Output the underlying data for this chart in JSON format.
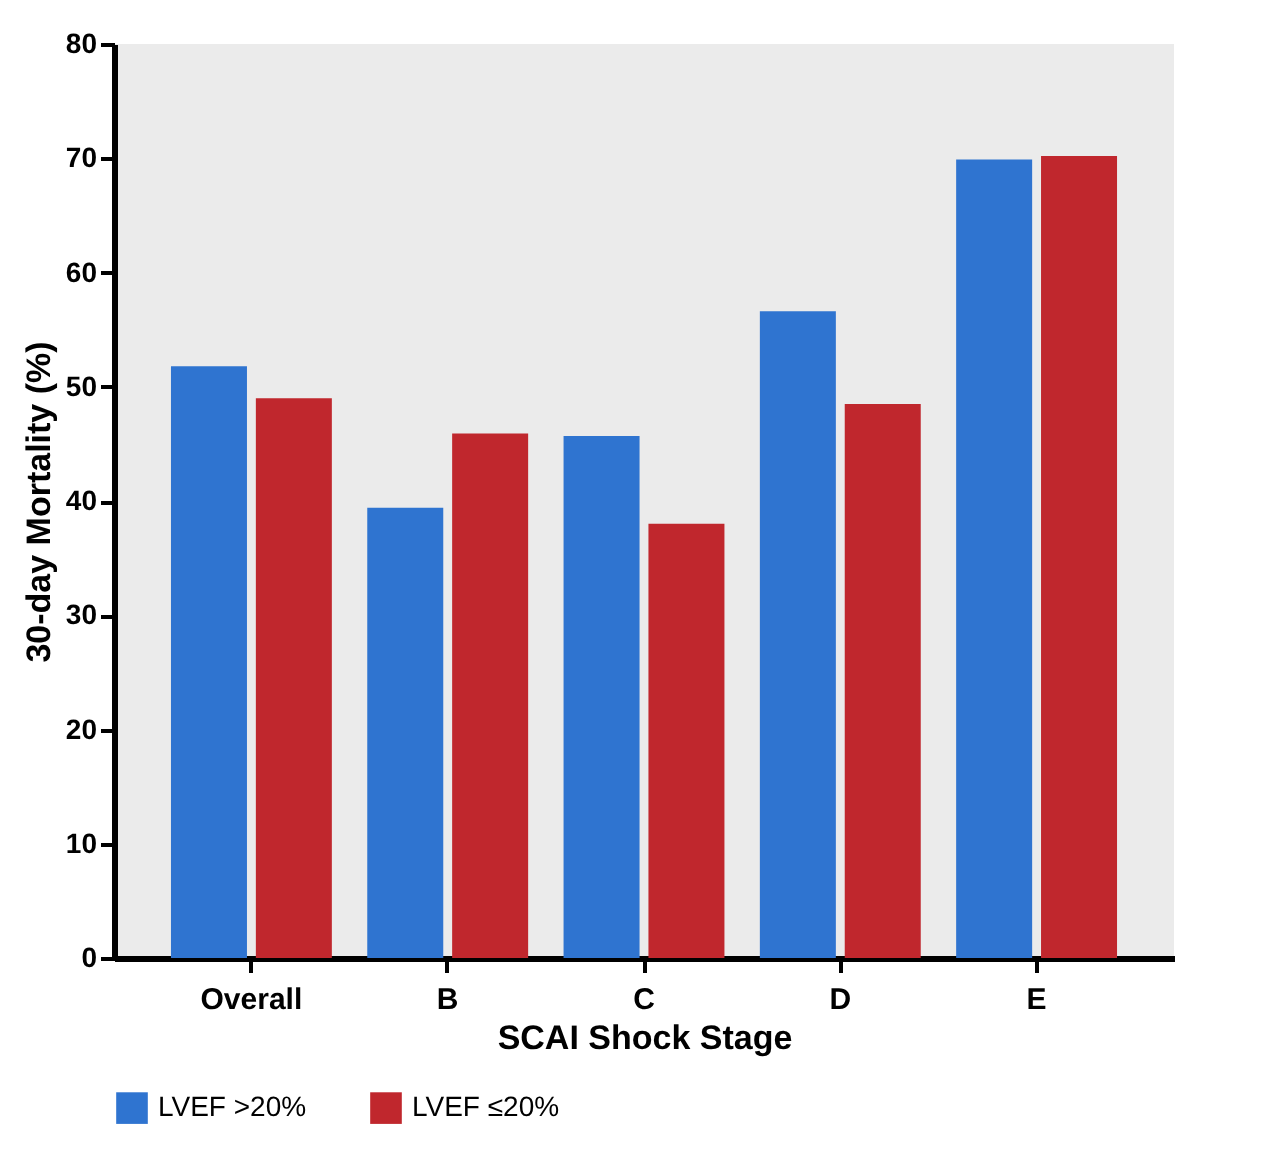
{
  "chart_data": {
    "type": "bar",
    "xlabel": "SCAI Shock Stage",
    "ylabel": "30-day Mortality (%)",
    "categories": [
      "Overall",
      "B",
      "C",
      "D",
      "E"
    ],
    "series": [
      {
        "name": "LVEF >20%",
        "color": "#2f74d0",
        "values": [
          51.8,
          39.4,
          45.7,
          56.6,
          69.9
        ]
      },
      {
        "name": "LVEF ≤20%",
        "color": "#c0272d",
        "values": [
          49.0,
          45.9,
          38.0,
          48.5,
          70.2
        ]
      }
    ],
    "ylim": [
      0,
      80
    ],
    "yticks": [
      0,
      10,
      20,
      30,
      40,
      50,
      60,
      70,
      80
    ],
    "grid": false,
    "legend": "bottom"
  }
}
